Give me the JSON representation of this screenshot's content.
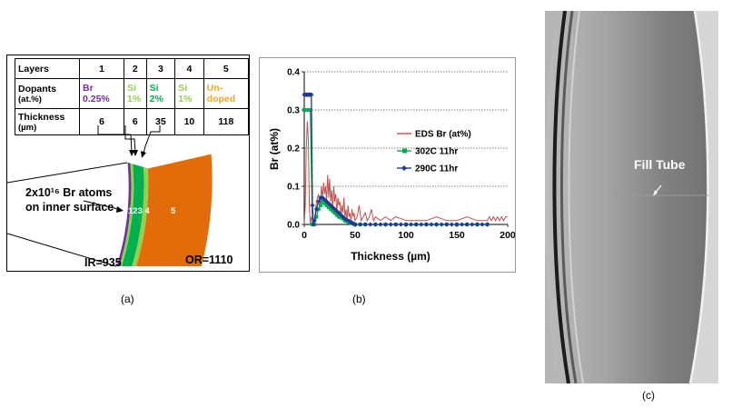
{
  "panel_a": {
    "table": {
      "headers": [
        "Layers",
        "1",
        "2",
        "3",
        "4",
        "5"
      ],
      "dopants_label": "Dopants",
      "dopants_unit": "(at.%)",
      "dopants_elements": [
        "Br",
        "Si",
        "Si",
        "Si",
        "Un-"
      ],
      "dopants_values": [
        "0.25%",
        "1%",
        "2%",
        "1%",
        "doped"
      ],
      "thickness_label": "Thickness",
      "thickness_unit": "(µm)",
      "thickness_values": [
        "6",
        "6",
        "35",
        "10",
        "118"
      ]
    },
    "atoms_label_line1": "2x10¹⁶ Br atoms",
    "atoms_label_line2": "on inner surface",
    "layer_numbers": "123 4",
    "layer_5": "5",
    "ir_label": "IR=935",
    "or_label": "OR=1110",
    "caption": "(a)",
    "colors": {
      "purple": "#7030a0",
      "green_light": "#92d050",
      "green_dark": "#00b050",
      "orange": "#e36c0a"
    }
  },
  "chart_data": {
    "type": "line",
    "xlabel": "Thickness (µm)",
    "ylabel": "Br (at%)",
    "xlim": [
      0,
      200
    ],
    "ylim": [
      0,
      0.4
    ],
    "xticks": [
      "0",
      "50",
      "100",
      "150",
      "200"
    ],
    "yticks": [
      "0.0",
      "0.1",
      "0.2",
      "0.3",
      "0.4"
    ],
    "grid": true,
    "legend_position": "right",
    "series": [
      {
        "name": "EDS Br (at%)",
        "color": "#c0504d",
        "x": [
          0,
          1,
          2,
          3,
          4,
          5,
          6,
          7,
          8,
          9,
          10,
          12,
          14,
          16,
          17,
          18,
          19,
          20,
          21,
          22,
          23,
          24,
          25,
          26,
          27,
          28,
          29,
          30,
          31,
          32,
          33,
          34,
          35,
          36,
          37,
          38,
          39,
          40,
          41,
          42,
          43,
          44,
          45,
          46,
          47,
          48,
          49,
          50,
          52,
          54,
          56,
          58,
          60,
          62,
          64,
          66,
          68,
          70,
          75,
          80,
          85,
          90,
          100,
          110,
          120,
          130,
          140,
          150,
          160,
          170,
          175,
          180,
          182,
          184,
          186,
          188,
          190,
          192,
          194,
          196,
          198,
          200
        ],
        "y": [
          0,
          0.05,
          0.2,
          0.27,
          0.22,
          0.05,
          0,
          0.02,
          0.01,
          0,
          0.01,
          0.06,
          0.08,
          0.05,
          0.1,
          0.07,
          0.11,
          0.08,
          0.1,
          0.06,
          0.13,
          0.07,
          0.12,
          0.06,
          0.09,
          0.04,
          0.1,
          0.06,
          0.08,
          0.03,
          0.07,
          0.05,
          0.06,
          0.02,
          0.05,
          0.03,
          0.07,
          0.02,
          0.04,
          0.01,
          0.05,
          0.02,
          0.03,
          0.01,
          0.04,
          0.02,
          0.03,
          0.01,
          0.02,
          0.05,
          0.01,
          0.02,
          0.03,
          0.01,
          0.02,
          0.04,
          0.01,
          0.02,
          0.01,
          0.02,
          0.01,
          0.02,
          0.01,
          0.01,
          0.01,
          0.02,
          0.01,
          0.01,
          0.02,
          0.01,
          0.01,
          0.01,
          0.02,
          0.01,
          0.02,
          0.01,
          0.02,
          0.01,
          0.02,
          0.01,
          0.02,
          0.02
        ]
      },
      {
        "name": "302C 11hr",
        "color": "#00b050",
        "x": [
          0,
          2,
          4,
          5,
          6,
          8,
          10,
          12,
          14,
          16,
          18,
          20,
          22,
          24,
          26,
          28,
          30,
          32,
          34,
          36,
          38,
          40,
          42,
          44,
          46,
          48,
          50,
          55,
          60,
          70,
          80,
          90,
          100,
          110,
          120,
          130,
          140,
          150,
          160,
          170,
          180
        ],
        "y": [
          0.3,
          0.3,
          0.3,
          0.3,
          0.3,
          0,
          0,
          0.02,
          0.04,
          0.05,
          0.06,
          0.055,
          0.05,
          0.045,
          0.04,
          0.035,
          0.03,
          0.025,
          0.02,
          0.018,
          0.015,
          0.01,
          0.008,
          0.006,
          0.004,
          0.002,
          0,
          0,
          0,
          0,
          0,
          0,
          0,
          0,
          0,
          0,
          0,
          0,
          0,
          0,
          0
        ]
      },
      {
        "name": "290C 11hr",
        "color": "#1f3a93",
        "x": [
          0,
          1,
          2,
          3,
          4,
          5,
          6,
          7,
          8,
          9,
          10,
          12,
          14,
          16,
          18,
          20,
          22,
          24,
          26,
          28,
          30,
          32,
          34,
          36,
          38,
          40,
          42,
          44,
          46,
          48,
          50,
          55,
          60,
          65,
          70,
          75,
          80,
          85,
          90,
          95,
          100,
          105,
          110,
          115,
          120,
          125,
          130,
          135,
          140,
          145,
          150,
          155,
          160,
          165,
          170,
          175,
          180
        ],
        "y": [
          0.34,
          0.34,
          0.34,
          0.34,
          0.34,
          0.34,
          0.34,
          0.34,
          0.05,
          0,
          0.01,
          0.04,
          0.06,
          0.07,
          0.07,
          0.065,
          0.06,
          0.055,
          0.05,
          0.045,
          0.04,
          0.035,
          0.03,
          0.025,
          0.02,
          0.015,
          0.012,
          0.009,
          0.006,
          0.003,
          0,
          0,
          0,
          0,
          0,
          0,
          0,
          0,
          0,
          0,
          0,
          0,
          0,
          0,
          0,
          0,
          0,
          0,
          0,
          0,
          0,
          0,
          0,
          0,
          0,
          0,
          0
        ]
      }
    ],
    "caption": "(b)"
  },
  "panel_c": {
    "label": "Fill Tube",
    "caption": "(c)"
  }
}
